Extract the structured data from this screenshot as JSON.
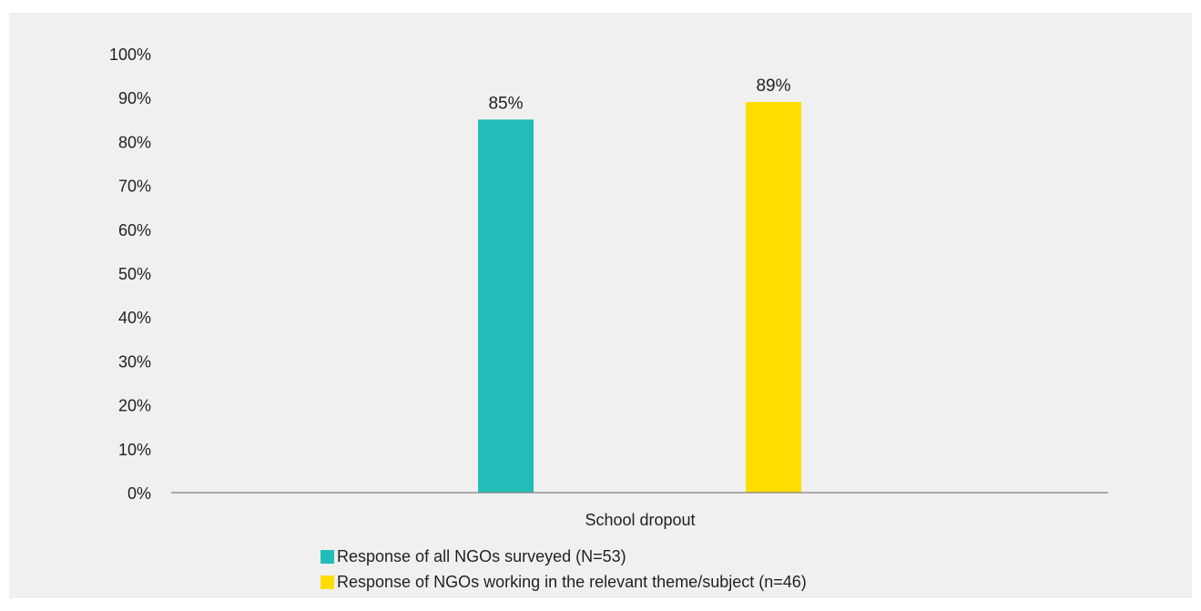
{
  "chart_data": {
    "type": "bar",
    "categories": [
      "School dropout"
    ],
    "series": [
      {
        "name": "Response of all NGOs surveyed (N=53)",
        "values": [
          85
        ],
        "color": "#22bdb8"
      },
      {
        "name": "Response of NGOs working in the relevant theme/subject (n=46)",
        "values": [
          89
        ],
        "color": "#ffdd00"
      }
    ],
    "data_labels": [
      "85%",
      "89%"
    ],
    "ylim": [
      0,
      100
    ],
    "yticks": [
      "0%",
      "10%",
      "20%",
      "30%",
      "40%",
      "50%",
      "60%",
      "70%",
      "80%",
      "90%",
      "100%"
    ],
    "grid": false,
    "legend_position": "bottom"
  }
}
